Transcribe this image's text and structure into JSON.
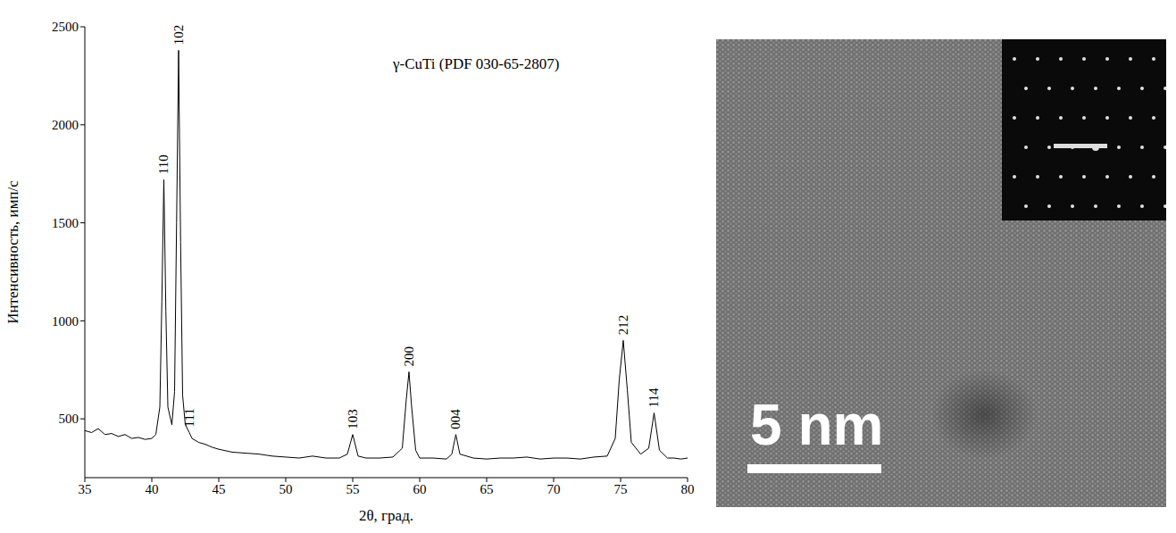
{
  "chart_data": {
    "type": "line",
    "title": "γ-CuTi (PDF 030-65-2807)",
    "x_label": "2θ, град.",
    "y_label": "Интенсивность, имп/с",
    "x": [
      35,
      35.5,
      36,
      36.5,
      37,
      37.5,
      38,
      38.5,
      39,
      39.5,
      40,
      40.3,
      40.6,
      40.75,
      40.9,
      41.05,
      41.2,
      41.5,
      41.7,
      41.85,
      42.0,
      42.15,
      42.3,
      42.5,
      42.8,
      43.0,
      43.5,
      44,
      44.5,
      45,
      46,
      47,
      48,
      49,
      50,
      51,
      52,
      53,
      54,
      54.6,
      55.0,
      55.4,
      56,
      57,
      58,
      58.7,
      59.0,
      59.2,
      59.4,
      59.7,
      60,
      61,
      62,
      62.4,
      62.7,
      63.0,
      64,
      65,
      66,
      67,
      68,
      69,
      70,
      71,
      72,
      73,
      74,
      74.6,
      74.9,
      75.2,
      75.5,
      75.8,
      76.5,
      77.1,
      77.5,
      77.9,
      78.5,
      79,
      79.5,
      80
    ],
    "values": [
      440,
      430,
      450,
      420,
      425,
      410,
      420,
      400,
      405,
      395,
      400,
      420,
      560,
      1100,
      1720,
      1050,
      560,
      470,
      640,
      1500,
      2380,
      1400,
      620,
      470,
      430,
      400,
      380,
      370,
      355,
      345,
      330,
      325,
      320,
      310,
      305,
      300,
      310,
      300,
      300,
      320,
      420,
      310,
      300,
      300,
      305,
      350,
      600,
      740,
      560,
      340,
      300,
      300,
      295,
      320,
      420,
      320,
      300,
      295,
      300,
      300,
      305,
      295,
      300,
      300,
      295,
      305,
      310,
      400,
      700,
      900,
      650,
      380,
      320,
      350,
      530,
      340,
      300,
      300,
      295,
      300
    ],
    "color": "#000000",
    "xlim": [
      35,
      80
    ],
    "xticks": [
      35,
      40,
      45,
      50,
      55,
      60,
      65,
      70,
      75,
      80
    ],
    "ylim": [
      200,
      2500
    ],
    "yticks": [
      500,
      1000,
      1500,
      2000,
      2500
    ],
    "grid": false,
    "peaks": [
      {
        "x": 40.9,
        "y": 1720,
        "label": "110"
      },
      {
        "x": 42.0,
        "y": 2380,
        "label": "102"
      },
      {
        "x": 42.8,
        "y": 430,
        "label": "111"
      },
      {
        "x": 55.0,
        "y": 420,
        "label": "103"
      },
      {
        "x": 59.2,
        "y": 740,
        "label": "200"
      },
      {
        "x": 62.7,
        "y": 420,
        "label": "004"
      },
      {
        "x": 75.2,
        "y": 900,
        "label": "212"
      },
      {
        "x": 77.5,
        "y": 530,
        "label": "114"
      }
    ]
  },
  "tem_image": {
    "scale_bar": "5 nm"
  }
}
